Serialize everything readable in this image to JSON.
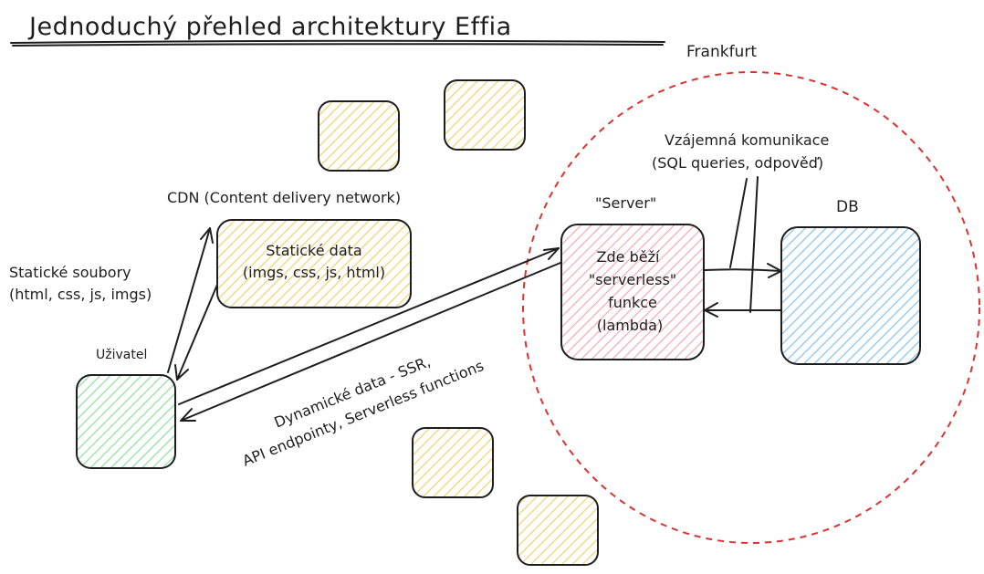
{
  "title": "Jednoduchý přehled architektury Effia",
  "region": {
    "label": "Frankfurt",
    "border_color": "#e03131"
  },
  "nodes": {
    "user": {
      "label": "Uživatel",
      "fill": "#b2f2bb"
    },
    "cdn": {
      "caption": "CDN (Content delivery network)",
      "lines": [
        "Statické data",
        "(imgs, css, js, html)"
      ],
      "fill": "#ffec99"
    },
    "server": {
      "caption": "\"Server\"",
      "lines": [
        "Zde běží",
        "\"serverless\"",
        "funkce",
        "(lambda)"
      ],
      "fill": "#ffc9c9"
    },
    "db": {
      "caption": "DB",
      "fill": "#a5d8ff"
    }
  },
  "edges": {
    "static_files": {
      "lines": [
        "Statické soubory",
        "(html, css, js, imgs)"
      ]
    },
    "dynamic_data": {
      "lines": [
        "Dynamické data - SSR,",
        "API endpointy, Serverless functions"
      ]
    },
    "server_db": {
      "lines": [
        "Vzájemná komunikace",
        "(SQL queries, odpověď)"
      ]
    }
  },
  "decor_fill": "#ffec99"
}
